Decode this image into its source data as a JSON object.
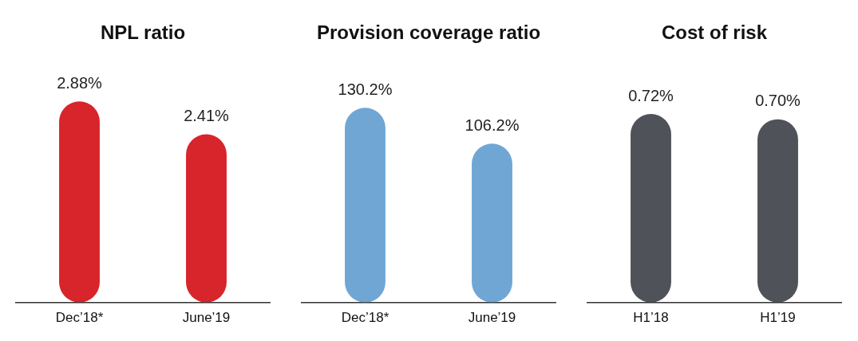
{
  "chart_data": [
    {
      "type": "bar",
      "title": "NPL ratio",
      "categories": [
        "Dec’18*",
        "June’19"
      ],
      "values": [
        2.88,
        2.41
      ],
      "color": "#d7252b",
      "value_labels": [
        "2.88%",
        "2.41%"
      ],
      "tick_labels": "x",
      "grid": false,
      "legend": false
    },
    {
      "type": "bar",
      "title": "Provision coverage ratio",
      "categories": [
        "Dec’18*",
        "June’19"
      ],
      "values": [
        130.2,
        106.2
      ],
      "color": "#70a6d4",
      "value_labels": [
        "130.2%",
        "106.2%"
      ],
      "tick_labels": "x",
      "grid": false,
      "legend": false
    },
    {
      "type": "bar",
      "title": "Cost of risk",
      "categories": [
        "H1’18",
        "H1’19"
      ],
      "values": [
        0.72,
        0.7
      ],
      "color": "#4f5258",
      "value_labels": [
        "0.72%",
        "0.70%"
      ],
      "tick_labels": "x",
      "grid": false,
      "legend": false
    }
  ]
}
